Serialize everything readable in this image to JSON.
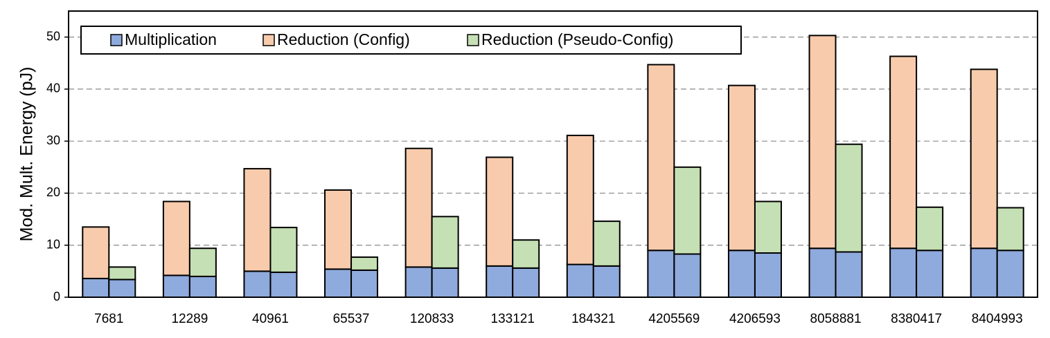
{
  "chart_data": {
    "type": "stacked-grouped-bar",
    "y_label": "Mod. Mult. Energy (pJ)",
    "categories": [
      "7681",
      "12289",
      "40961",
      "65537",
      "120833",
      "133121",
      "184321",
      "4205569",
      "4206593",
      "8058881",
      "8380417",
      "8404993"
    ],
    "series": [
      {
        "name": "Multiplication",
        "color": "#8faadc",
        "stack": 0,
        "values": [
          3.6,
          4.2,
          5.0,
          5.4,
          5.8,
          6.0,
          6.3,
          9.0,
          9.0,
          9.4,
          9.4,
          9.4
        ]
      },
      {
        "name": "Reduction (Config)",
        "color": "#f8cbad",
        "stack": 0,
        "values": [
          9.9,
          14.2,
          19.7,
          15.2,
          22.8,
          20.9,
          24.8,
          35.7,
          31.7,
          40.9,
          36.9,
          34.4
        ]
      },
      {
        "color": "#8faadc",
        "stack": 1,
        "values": [
          3.4,
          4.0,
          4.8,
          5.2,
          5.6,
          5.6,
          6.0,
          8.3,
          8.5,
          8.7,
          9.0,
          9.0
        ]
      },
      {
        "name": "Reduction (Pseudo-Config)",
        "color": "#c5e0b4",
        "stack": 1,
        "values": [
          2.4,
          5.4,
          8.6,
          2.5,
          9.9,
          5.4,
          8.6,
          16.7,
          9.9,
          20.7,
          8.3,
          8.2
        ]
      }
    ],
    "ylim": [
      0,
      55
    ],
    "yticks": [
      0,
      10,
      20,
      30,
      40,
      50
    ],
    "grid": true
  }
}
